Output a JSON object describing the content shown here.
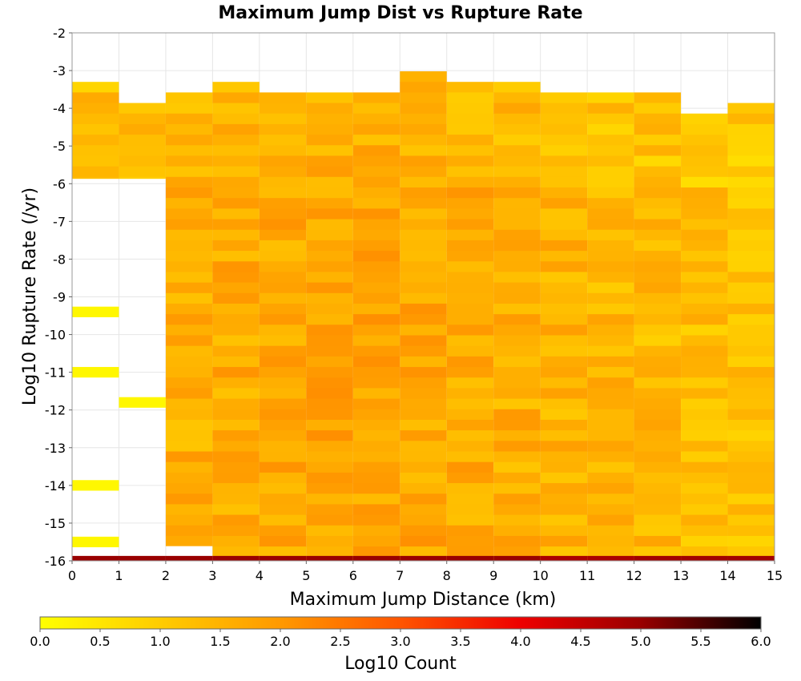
{
  "chart_data": {
    "type": "heatmap",
    "title": "Maximum Jump Dist vs Rupture Rate",
    "xlabel": "Maximum Jump Distance (km)",
    "ylabel": "Log10 Rupture Rate (/yr)",
    "xlim": [
      0,
      15
    ],
    "ylim": [
      -16,
      -2
    ],
    "x_ticks": [
      "0",
      "1",
      "2",
      "3",
      "4",
      "5",
      "6",
      "7",
      "8",
      "9",
      "10",
      "11",
      "12",
      "13",
      "14",
      "15"
    ],
    "y_ticks": [
      "-2",
      "-3",
      "-4",
      "-5",
      "-6",
      "-7",
      "-8",
      "-9",
      "-10",
      "-11",
      "-12",
      "-13",
      "-14",
      "-15",
      "-16"
    ],
    "x_bin_width": 1,
    "y_bin_height": 0.28,
    "grid": true,
    "colorbar": {
      "label": "Log10 Count",
      "min": 0,
      "max": 6,
      "ticks": [
        "0.0",
        "0.5",
        "1.0",
        "1.5",
        "2.0",
        "2.5",
        "3.0",
        "3.5",
        "4.0",
        "4.5",
        "5.0",
        "5.5",
        "6.0"
      ],
      "colormap": [
        "#ffff00",
        "#ffcc00",
        "#ff9900",
        "#ff5500",
        "#ee0000",
        "#990000",
        "#000000"
      ]
    },
    "column_ranges": [
      {
        "x": 0.5,
        "y_range": [
          -5.86,
          -3.3
        ],
        "y_bins": [
          -15.5,
          -14,
          -11,
          -9.4
        ],
        "base": 5.0
      },
      {
        "x": 1.5,
        "y_range": [
          -5.86,
          -3.86
        ],
        "y_bins": [
          -11.8
        ],
        "base": 5.0
      },
      {
        "x": 2.5,
        "y_range": [
          -15.6,
          -3.58
        ],
        "y_bins": [],
        "base": 5.0
      },
      {
        "x": 3.5,
        "y_range": [
          -16,
          -3.3
        ],
        "y_bins": [],
        "base": 5.0
      },
      {
        "x": 4.5,
        "y_range": [
          -16,
          -3.58
        ],
        "y_bins": [],
        "base": 5.0
      },
      {
        "x": 5.5,
        "y_range": [
          -16,
          -3.58
        ],
        "y_bins": [],
        "base": 5.0
      },
      {
        "x": 6.5,
        "y_range": [
          -16,
          -3.58
        ],
        "y_bins": [],
        "base": 5.0
      },
      {
        "x": 7.5,
        "y_range": [
          -16,
          -3.02
        ],
        "y_bins": [],
        "base": 5.0
      },
      {
        "x": 8.5,
        "y_range": [
          -16,
          -3.3
        ],
        "y_bins": [],
        "base": 5.0
      },
      {
        "x": 9.5,
        "y_range": [
          -16,
          -3.3
        ],
        "y_bins": [],
        "base": 5.0
      },
      {
        "x": 10.5,
        "y_range": [
          -16,
          -3.58
        ],
        "y_bins": [],
        "base": 4.8
      },
      {
        "x": 11.5,
        "y_range": [
          -16,
          -3.58
        ],
        "y_bins": [],
        "base": 4.8
      },
      {
        "x": 12.5,
        "y_range": [
          -16,
          -3.58
        ],
        "y_bins": [],
        "base": 4.9
      },
      {
        "x": 13.5,
        "y_range": [
          -16,
          -4.14
        ],
        "y_bins": [],
        "base": 4.9
      },
      {
        "x": 14.5,
        "y_range": [
          -16,
          -3.86
        ],
        "y_bins": [],
        "base": 4.9
      }
    ]
  }
}
